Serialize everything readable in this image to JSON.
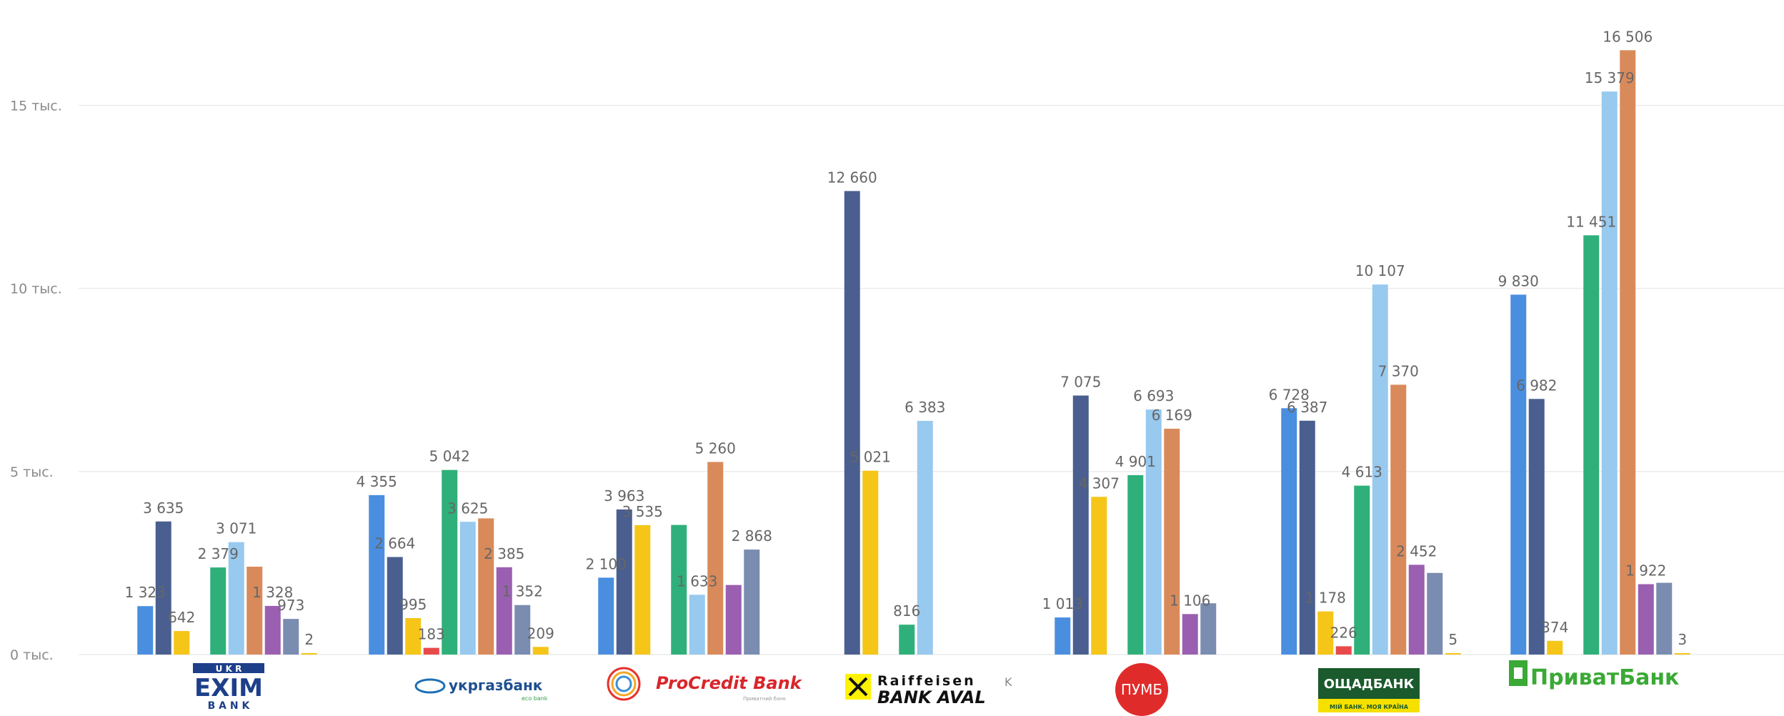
{
  "chart_data": {
    "type": "bar",
    "categories": [
      "Укрексімбанк",
      "Укргазбанк",
      "ProCredit Bank",
      "Raiffeisen Bank Aval",
      "ПУМБ",
      "Ощадбанк",
      "ПриватБанк"
    ],
    "ylim": [
      0,
      17000
    ],
    "yticks": [
      {
        "value": 0,
        "label": "0 тыс."
      },
      {
        "value": 5000,
        "label": "5 тыс."
      },
      {
        "value": 10000,
        "label": "10 тыс."
      },
      {
        "value": 15000,
        "label": "15 тыс."
      }
    ],
    "grid": true,
    "series": [
      {
        "color": "#4a8ee0",
        "values": [
          1323,
          4355,
          2100,
          null,
          1013,
          6728,
          9830
        ],
        "labels": [
          "1 323",
          "4 355",
          "2 100",
          "",
          "1 013",
          "6 728",
          "9 830"
        ]
      },
      {
        "color": "#4a5f8f",
        "values": [
          3635,
          2664,
          3963,
          12660,
          7075,
          6387,
          6982
        ],
        "labels": [
          "3 635",
          "2 664",
          "3 963",
          "12 660",
          "7 075",
          "6 387",
          "6 982"
        ]
      },
      {
        "color": "#f5c518",
        "values": [
          642,
          995,
          3535,
          5021,
          4307,
          1178,
          374
        ],
        "labels": [
          "642",
          "995",
          "3 535",
          "5 021",
          "4 307",
          "1 178",
          "374"
        ]
      },
      {
        "color": "#e84a4a",
        "values": [
          null,
          183,
          null,
          null,
          null,
          226,
          null
        ],
        "labels": [
          "",
          "183",
          "",
          "",
          "",
          "226",
          ""
        ]
      },
      {
        "color": "#2fb07a",
        "values": [
          2379,
          5042,
          3540,
          816,
          4901,
          4613,
          11451
        ],
        "labels": [
          "2 379",
          "5 042",
          "",
          "816",
          "4 901",
          "4 613",
          "11 451"
        ]
      },
      {
        "color": "#98c9ef",
        "values": [
          3071,
          3625,
          1633,
          6383,
          6693,
          10107,
          15379
        ],
        "labels": [
          "3 071",
          "3 625",
          "1 633",
          "6 383",
          "6 693",
          "10 107",
          "15 379"
        ]
      },
      {
        "color": "#d98a5a",
        "values": [
          2400,
          3720,
          5260,
          null,
          6169,
          7370,
          16506
        ],
        "labels": [
          "",
          "",
          "5 260",
          "",
          "6 169",
          "7 370",
          "16 506"
        ]
      },
      {
        "color": "#9a5fb0",
        "values": [
          1328,
          2385,
          1900,
          null,
          1106,
          2452,
          1922
        ],
        "labels": [
          "1 328",
          "2 385",
          "",
          "",
          "1 106",
          "2 452",
          "1 922"
        ]
      },
      {
        "color": "#7a8cb0",
        "values": [
          973,
          1352,
          2868,
          null,
          1400,
          2230,
          1960
        ],
        "labels": [
          "973",
          "1 352",
          "2 868",
          "",
          "",
          "",
          ""
        ]
      },
      {
        "color": "#f5c518",
        "values": [
          2,
          209,
          null,
          null,
          null,
          5,
          3
        ],
        "labels": [
          "2",
          "209",
          "",
          "",
          "",
          "5",
          "3"
        ]
      }
    ],
    "unit_note": "тыс."
  },
  "logos": {
    "ukreximbank": {
      "top": "U K R",
      "main": "EXIM",
      "bottom": "B A N K"
    },
    "ukrgasbank": {
      "main": "укргазбанк",
      "sub": "eco bank"
    },
    "procredit": {
      "main": "ProCredit Bank",
      "sub": "Приватний банк"
    },
    "raiffeisen": {
      "line1": "Raiffeisen",
      "line2": "BANK AVAL",
      "extra": "K"
    },
    "pumb": {
      "main": "ПУМБ"
    },
    "oschadbank": {
      "main": "ОЩАДБАНК",
      "sub": "МІЙ БАНК. МОЯ КРАЇНА"
    },
    "privatbank": {
      "main": "ПриватБанк"
    }
  }
}
